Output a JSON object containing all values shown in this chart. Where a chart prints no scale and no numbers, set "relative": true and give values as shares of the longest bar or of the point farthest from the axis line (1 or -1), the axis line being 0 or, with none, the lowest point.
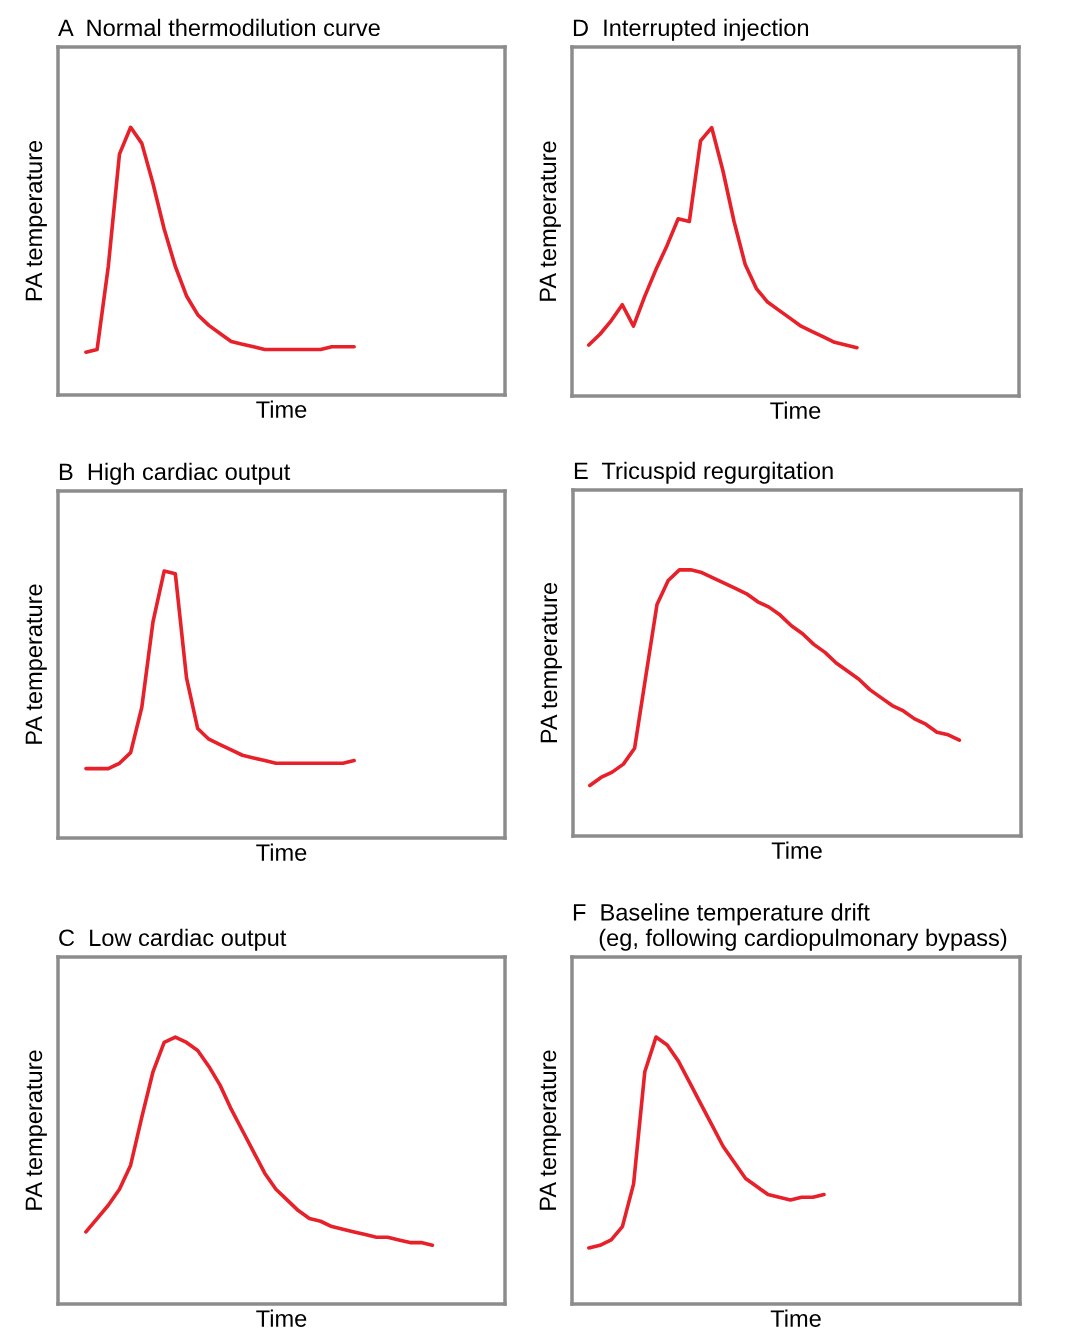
{
  "chart_data": [
    {
      "type": "line",
      "relative": true,
      "title": "A  Normal thermodilution curve",
      "xlabel": "Time",
      "ylabel": "PA temperature",
      "categories": [
        null,
        null,
        null,
        null,
        null,
        null,
        null,
        null,
        null,
        null,
        null,
        null,
        null,
        null,
        null,
        null,
        null,
        null,
        null,
        null,
        null,
        null,
        null,
        null,
        null,
        null,
        null,
        null,
        null,
        null,
        null,
        null,
        null,
        null,
        null,
        null,
        null,
        null,
        null,
        null
      ],
      "series": [
        {
          "color": "#e8202a",
          "values": [
            null,
            null,
            0.16,
            0.17,
            0.48,
            0.9,
            1.0,
            0.94,
            0.79,
            0.62,
            0.48,
            0.37,
            0.3,
            0.26,
            0.23,
            0.2,
            0.19,
            0.18,
            0.17,
            0.17,
            0.17,
            0.17,
            0.17,
            0.17,
            0.18,
            0.18,
            0.18,
            null,
            null,
            null,
            null,
            null,
            null,
            null,
            null,
            null,
            null,
            null,
            null,
            null
          ]
        }
      ]
    },
    {
      "type": "line",
      "relative": true,
      "title": "B  High cardiac output",
      "xlabel": "Time",
      "ylabel": "PA temperature",
      "categories": [
        null,
        null,
        null,
        null,
        null,
        null,
        null,
        null,
        null,
        null,
        null,
        null,
        null,
        null,
        null,
        null,
        null,
        null,
        null,
        null,
        null,
        null,
        null,
        null,
        null,
        null,
        null,
        null,
        null,
        null,
        null,
        null,
        null,
        null,
        null,
        null,
        null,
        null,
        null,
        null
      ],
      "series": [
        {
          "color": "#e8202a",
          "values": [
            null,
            null,
            0.26,
            0.26,
            0.26,
            0.28,
            0.32,
            0.49,
            0.81,
            1.0,
            0.99,
            0.6,
            0.41,
            0.37,
            0.35,
            0.33,
            0.31,
            0.3,
            0.29,
            0.28,
            0.28,
            0.28,
            0.28,
            0.28,
            0.28,
            0.28,
            0.29,
            null,
            null,
            null,
            null,
            null,
            null,
            null,
            null,
            null,
            null,
            null,
            null,
            null
          ]
        }
      ]
    },
    {
      "type": "line",
      "relative": true,
      "title": "C  Low cardiac output",
      "xlabel": "Time",
      "ylabel": "PA temperature",
      "categories": [
        null,
        null,
        null,
        null,
        null,
        null,
        null,
        null,
        null,
        null,
        null,
        null,
        null,
        null,
        null,
        null,
        null,
        null,
        null,
        null,
        null,
        null,
        null,
        null,
        null,
        null,
        null,
        null,
        null,
        null,
        null,
        null,
        null,
        null,
        null,
        null,
        null,
        null,
        null,
        null
      ],
      "series": [
        {
          "color": "#e8202a",
          "values": [
            null,
            null,
            0.27,
            0.32,
            0.37,
            0.43,
            0.52,
            0.7,
            0.87,
            0.98,
            1.0,
            0.98,
            0.95,
            0.89,
            0.82,
            0.73,
            0.65,
            0.57,
            0.49,
            0.43,
            0.39,
            0.35,
            0.32,
            0.31,
            0.29,
            0.28,
            0.27,
            0.26,
            0.25,
            0.25,
            0.24,
            0.23,
            0.23,
            0.22,
            null,
            null,
            null,
            null,
            null,
            null
          ]
        }
      ]
    },
    {
      "type": "line",
      "relative": true,
      "title": "D  Interrupted injection",
      "xlabel": "Time",
      "ylabel": "PA temperature",
      "categories": [
        null,
        null,
        null,
        null,
        null,
        null,
        null,
        null,
        null,
        null,
        null,
        null,
        null,
        null,
        null,
        null,
        null,
        null,
        null,
        null,
        null,
        null,
        null,
        null,
        null,
        null,
        null,
        null,
        null,
        null,
        null,
        null,
        null,
        null,
        null,
        null,
        null,
        null,
        null,
        null
      ],
      "series": [
        {
          "color": "#e8202a",
          "values": [
            null,
            0.19,
            0.23,
            0.28,
            0.34,
            0.26,
            0.37,
            0.47,
            0.56,
            0.66,
            0.65,
            0.95,
            1.0,
            0.84,
            0.65,
            0.49,
            0.4,
            0.35,
            0.32,
            0.29,
            0.26,
            0.24,
            0.22,
            0.2,
            0.19,
            0.18,
            null,
            null,
            null,
            null,
            null,
            null,
            null,
            null,
            null,
            null,
            null,
            null,
            null,
            null
          ]
        }
      ]
    },
    {
      "type": "line",
      "relative": true,
      "title": "E  Tricuspid regurgitation",
      "xlabel": "Time",
      "ylabel": "PA temperature",
      "categories": [
        null,
        null,
        null,
        null,
        null,
        null,
        null,
        null,
        null,
        null,
        null,
        null,
        null,
        null,
        null,
        null,
        null,
        null,
        null,
        null,
        null,
        null,
        null,
        null,
        null,
        null,
        null,
        null,
        null,
        null,
        null,
        null,
        null,
        null,
        null,
        null,
        null,
        null,
        null,
        null
      ],
      "series": [
        {
          "color": "#e8202a",
          "values": [
            null,
            0.19,
            0.22,
            0.24,
            0.27,
            0.33,
            0.6,
            0.87,
            0.96,
            1.0,
            1.0,
            0.99,
            0.97,
            0.95,
            0.93,
            0.91,
            0.88,
            0.86,
            0.83,
            0.79,
            0.76,
            0.72,
            0.69,
            0.65,
            0.62,
            0.59,
            0.55,
            0.52,
            0.49,
            0.47,
            0.44,
            0.42,
            0.39,
            0.38,
            0.36,
            null,
            null,
            null,
            null,
            null
          ]
        }
      ]
    },
    {
      "type": "line",
      "relative": true,
      "title": "F  Baseline temperature drift\n    (eg, following cardiopulmonary bypass)",
      "xlabel": "Time",
      "ylabel": "PA temperature",
      "categories": [
        null,
        null,
        null,
        null,
        null,
        null,
        null,
        null,
        null,
        null,
        null,
        null,
        null,
        null,
        null,
        null,
        null,
        null,
        null,
        null,
        null,
        null,
        null,
        null,
        null,
        null,
        null,
        null,
        null,
        null,
        null,
        null,
        null,
        null,
        null,
        null,
        null,
        null,
        null,
        null
      ],
      "series": [
        {
          "color": "#e8202a",
          "values": [
            null,
            0.21,
            0.22,
            0.24,
            0.29,
            0.45,
            0.87,
            1.0,
            0.97,
            0.91,
            0.83,
            0.75,
            0.67,
            0.59,
            0.53,
            0.47,
            0.44,
            0.41,
            0.4,
            0.39,
            0.4,
            0.4,
            0.41,
            null,
            null,
            null,
            null,
            null,
            null,
            null,
            null,
            null,
            null,
            null,
            null,
            null,
            null,
            null,
            null,
            null
          ]
        }
      ]
    }
  ]
}
